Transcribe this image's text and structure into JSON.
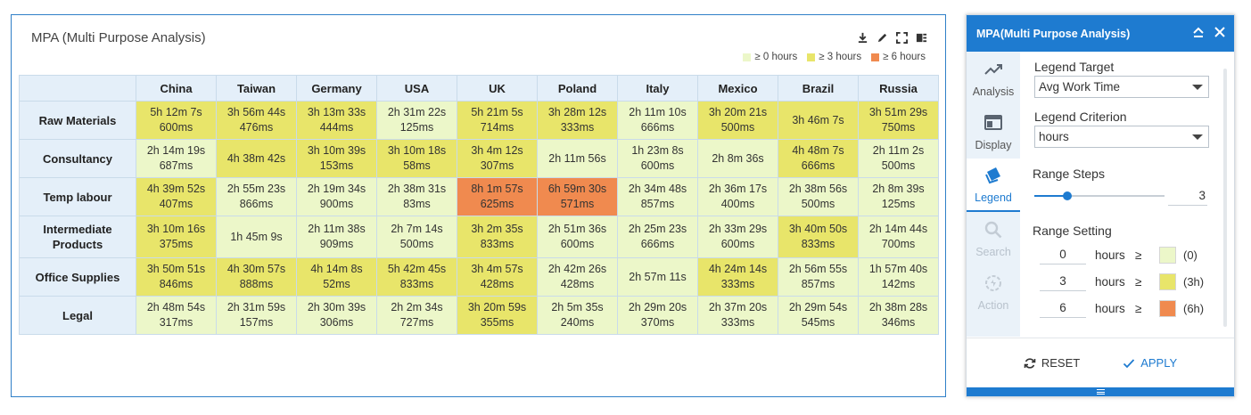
{
  "panel": {
    "title": "MPA (Multi Purpose Analysis)",
    "tools": [
      "download-icon",
      "edit-icon",
      "fullscreen-icon",
      "settings-toggle-icon"
    ]
  },
  "legend": [
    {
      "label": "≥ 0 hours",
      "color": "#ecf7c9"
    },
    {
      "label": "≥ 3 hours",
      "color": "#e8e56a"
    },
    {
      "label": "≥ 6 hours",
      "color": "#f08a4f"
    }
  ],
  "colors": {
    "low": "#ecf7c9",
    "mid": "#e8e56a",
    "high": "#f08a4f",
    "header": "#e4eff9",
    "accent": "#1e7bd0"
  },
  "table": {
    "columns": [
      "China",
      "Taiwan",
      "Germany",
      "USA",
      "UK",
      "Poland",
      "Italy",
      "Mexico",
      "Brazil",
      "Russia"
    ],
    "rows": [
      {
        "label": "Raw Materials",
        "cells": [
          {
            "l1": "5h 12m 7s",
            "l2": "600ms",
            "level": 2
          },
          {
            "l1": "3h 56m 44s",
            "l2": "476ms",
            "level": 2
          },
          {
            "l1": "3h 13m 33s",
            "l2": "444ms",
            "level": 2
          },
          {
            "l1": "2h 31m 22s",
            "l2": "125ms",
            "level": 1
          },
          {
            "l1": "5h 21m 5s",
            "l2": "714ms",
            "level": 2
          },
          {
            "l1": "3h 28m 12s",
            "l2": "333ms",
            "level": 2
          },
          {
            "l1": "2h 11m 10s",
            "l2": "666ms",
            "level": 1
          },
          {
            "l1": "3h 20m 21s",
            "l2": "500ms",
            "level": 2
          },
          {
            "l1": "3h 46m 7s",
            "l2": "",
            "level": 2
          },
          {
            "l1": "3h 51m 29s",
            "l2": "750ms",
            "level": 2
          }
        ]
      },
      {
        "label": "Consultancy",
        "cells": [
          {
            "l1": "2h 14m 19s",
            "l2": "687ms",
            "level": 1
          },
          {
            "l1": "4h 38m 42s",
            "l2": "",
            "level": 2
          },
          {
            "l1": "3h 10m 39s",
            "l2": "153ms",
            "level": 2
          },
          {
            "l1": "3h 10m 18s",
            "l2": "58ms",
            "level": 2
          },
          {
            "l1": "3h 4m 12s",
            "l2": "307ms",
            "level": 2
          },
          {
            "l1": "2h 11m 56s",
            "l2": "",
            "level": 1
          },
          {
            "l1": "1h 23m 8s",
            "l2": "600ms",
            "level": 1
          },
          {
            "l1": "2h 8m 36s",
            "l2": "",
            "level": 1
          },
          {
            "l1": "4h 48m 7s",
            "l2": "666ms",
            "level": 2
          },
          {
            "l1": "2h 11m 2s",
            "l2": "500ms",
            "level": 1
          }
        ]
      },
      {
        "label": "Temp labour",
        "cells": [
          {
            "l1": "4h 39m 52s",
            "l2": "407ms",
            "level": 2
          },
          {
            "l1": "2h 55m 23s",
            "l2": "866ms",
            "level": 1
          },
          {
            "l1": "2h 19m 34s",
            "l2": "900ms",
            "level": 1
          },
          {
            "l1": "2h 38m 31s",
            "l2": "83ms",
            "level": 1
          },
          {
            "l1": "8h 1m 57s",
            "l2": "625ms",
            "level": 3
          },
          {
            "l1": "6h 59m 30s",
            "l2": "571ms",
            "level": 3
          },
          {
            "l1": "2h 34m 48s",
            "l2": "857ms",
            "level": 1
          },
          {
            "l1": "2h 36m 17s",
            "l2": "400ms",
            "level": 1
          },
          {
            "l1": "2h 38m 56s",
            "l2": "500ms",
            "level": 1
          },
          {
            "l1": "2h 8m 39s",
            "l2": "125ms",
            "level": 1
          }
        ]
      },
      {
        "label": "Intermediate Products",
        "cells": [
          {
            "l1": "3h 10m 16s",
            "l2": "375ms",
            "level": 2
          },
          {
            "l1": "1h 45m 9s",
            "l2": "",
            "level": 1
          },
          {
            "l1": "2h 11m 38s",
            "l2": "909ms",
            "level": 1
          },
          {
            "l1": "2h 7m 14s",
            "l2": "500ms",
            "level": 1
          },
          {
            "l1": "3h 2m 35s",
            "l2": "833ms",
            "level": 2
          },
          {
            "l1": "2h 51m 36s",
            "l2": "600ms",
            "level": 1
          },
          {
            "l1": "2h 25m 23s",
            "l2": "666ms",
            "level": 1
          },
          {
            "l1": "2h 33m 29s",
            "l2": "600ms",
            "level": 1
          },
          {
            "l1": "3h 40m 50s",
            "l2": "833ms",
            "level": 2
          },
          {
            "l1": "2h 14m 44s",
            "l2": "700ms",
            "level": 1
          }
        ]
      },
      {
        "label": "Office Supplies",
        "cells": [
          {
            "l1": "3h 50m 51s",
            "l2": "846ms",
            "level": 2
          },
          {
            "l1": "4h 30m 57s",
            "l2": "888ms",
            "level": 2
          },
          {
            "l1": "4h 14m 8s",
            "l2": "52ms",
            "level": 2
          },
          {
            "l1": "5h 42m 45s",
            "l2": "833ms",
            "level": 2
          },
          {
            "l1": "3h 4m 57s",
            "l2": "428ms",
            "level": 2
          },
          {
            "l1": "2h 42m 26s",
            "l2": "428ms",
            "level": 1
          },
          {
            "l1": "2h 57m 11s",
            "l2": "",
            "level": 1
          },
          {
            "l1": "4h 24m 14s",
            "l2": "333ms",
            "level": 2
          },
          {
            "l1": "2h 56m 55s",
            "l2": "857ms",
            "level": 1
          },
          {
            "l1": "1h 57m 40s",
            "l2": "142ms",
            "level": 1
          }
        ]
      },
      {
        "label": "Legal",
        "cells": [
          {
            "l1": "2h 48m 54s",
            "l2": "317ms",
            "level": 1
          },
          {
            "l1": "2h 31m 59s",
            "l2": "157ms",
            "level": 1
          },
          {
            "l1": "2h 30m 39s",
            "l2": "306ms",
            "level": 1
          },
          {
            "l1": "2h 2m 34s",
            "l2": "727ms",
            "level": 1
          },
          {
            "l1": "3h 20m 59s",
            "l2": "355ms",
            "level": 2
          },
          {
            "l1": "2h 5m 35s",
            "l2": "240ms",
            "level": 1
          },
          {
            "l1": "2h 29m 20s",
            "l2": "370ms",
            "level": 1
          },
          {
            "l1": "2h 37m 20s",
            "l2": "333ms",
            "level": 1
          },
          {
            "l1": "2h 29m 54s",
            "l2": "545ms",
            "level": 1
          },
          {
            "l1": "2h 38m 28s",
            "l2": "346ms",
            "level": 1
          }
        ]
      }
    ]
  },
  "side": {
    "title": "MPA(Multi Purpose Analysis)",
    "nav": [
      {
        "label": "Analysis",
        "icon": "analysis-icon",
        "state": "normal"
      },
      {
        "label": "Display",
        "icon": "display-icon",
        "state": "normal"
      },
      {
        "label": "Legend",
        "icon": "legend-icon",
        "state": "active"
      },
      {
        "label": "Search",
        "icon": "search-icon",
        "state": "disabled"
      },
      {
        "label": "Action",
        "icon": "action-icon",
        "state": "disabled"
      }
    ],
    "legend_target_label": "Legend Target",
    "legend_target_value": "Avg Work Time",
    "legend_criterion_label": "Legend Criterion",
    "legend_criterion_value": "hours",
    "range_steps_label": "Range Steps",
    "range_steps_value": "3",
    "range_steps_fraction": 0.25,
    "range_setting_label": "Range Setting",
    "ranges": [
      {
        "value": "0",
        "unit": "hours",
        "op": "≥",
        "color": "#ecf7c9",
        "text": "(0)"
      },
      {
        "value": "3",
        "unit": "hours",
        "op": "≥",
        "color": "#e8e56a",
        "text": "(3h)"
      },
      {
        "value": "6",
        "unit": "hours",
        "op": "≥",
        "color": "#f08a4f",
        "text": "(6h)"
      }
    ],
    "reset_label": "RESET",
    "apply_label": "APPLY"
  }
}
